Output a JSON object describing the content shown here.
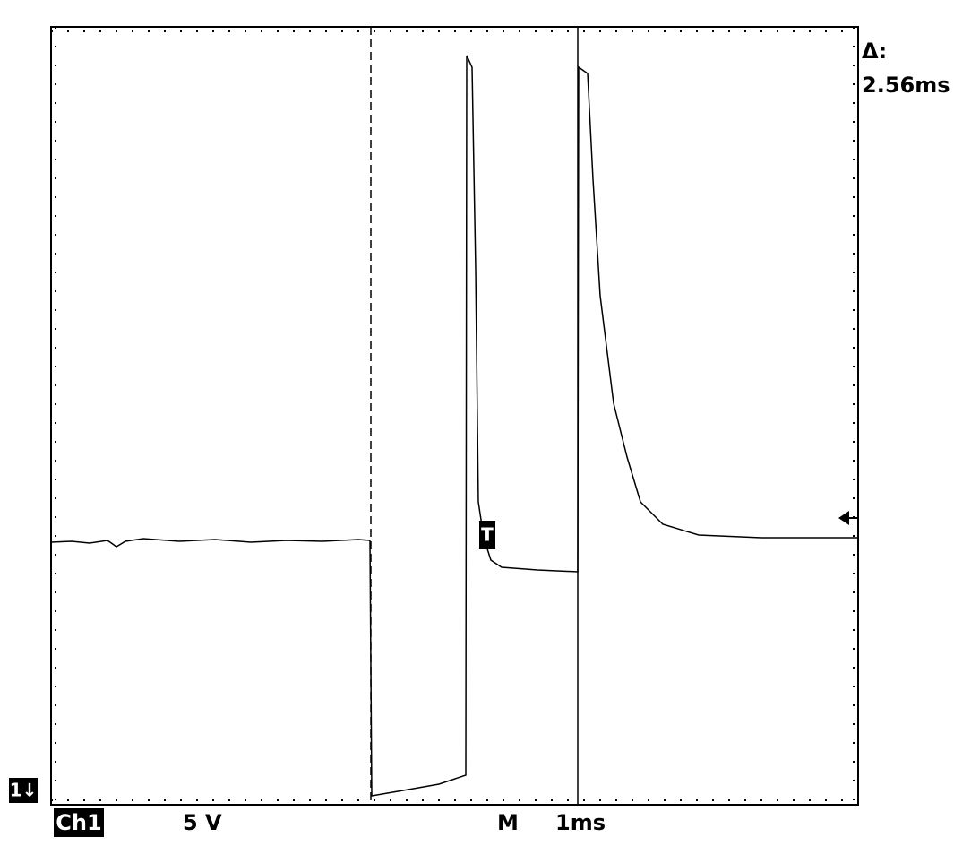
{
  "readout": {
    "delta_label": "Δ:",
    "delta_value": "2.56ms"
  },
  "channel": {
    "marker": "1↓",
    "name": "Ch1",
    "scale": "5 V"
  },
  "timebase": {
    "label": "M",
    "scale": "1ms"
  },
  "trigger": {
    "marker": "T"
  }
}
